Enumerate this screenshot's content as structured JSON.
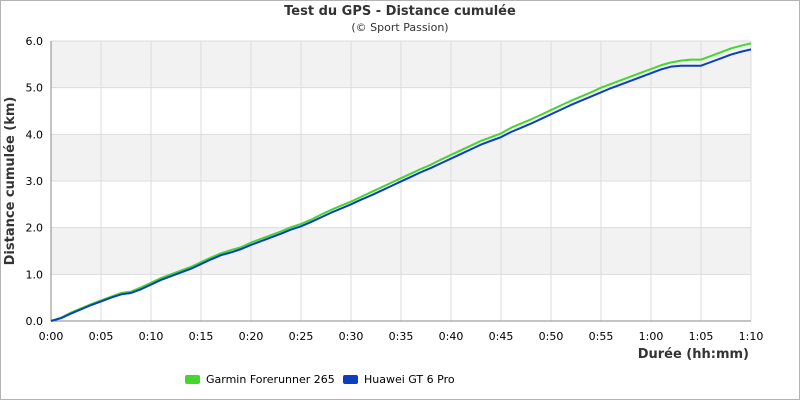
{
  "colors": {
    "garmin": "#44d62c",
    "huawei": "#0a3fbf",
    "band": "#f2f2f2",
    "grid": "#dcdcdc"
  },
  "chart_data": {
    "type": "line",
    "title": "Test du GPS - Distance cumulée",
    "subtitle": "(© Sport Passion)",
    "xlabel": "Durée (hh:mm)",
    "ylabel": "Distance cumulée (km)",
    "x_ticks": [
      "0:00",
      "0:05",
      "0:10",
      "0:15",
      "0:20",
      "0:25",
      "0:30",
      "0:35",
      "0:40",
      "0:45",
      "0:50",
      "0:55",
      "1:00",
      "1:05",
      "1:10"
    ],
    "y_ticks": [
      "0.0",
      "1.0",
      "2.0",
      "3.0",
      "4.0",
      "5.0",
      "6.0"
    ],
    "xlim_minutes": [
      0,
      70
    ],
    "ylim": [
      0,
      6
    ],
    "grid": true,
    "legend_position": "bottom",
    "x_minutes": [
      0,
      1,
      2,
      3,
      4,
      5,
      6,
      7,
      8,
      9,
      10,
      11,
      12,
      13,
      14,
      15,
      16,
      17,
      18,
      19,
      20,
      21,
      22,
      23,
      24,
      25,
      26,
      27,
      28,
      29,
      30,
      31,
      32,
      33,
      34,
      35,
      36,
      37,
      38,
      39,
      40,
      41,
      42,
      43,
      44,
      45,
      46,
      47,
      48,
      49,
      50,
      51,
      52,
      53,
      54,
      55,
      56,
      57,
      58,
      59,
      60,
      61,
      62,
      63,
      64,
      65,
      66,
      67,
      68,
      69,
      70
    ],
    "series": [
      {
        "name": "Garmin Forerunner 265",
        "color": "#44d62c",
        "values": [
          0.0,
          0.07,
          0.18,
          0.27,
          0.36,
          0.44,
          0.52,
          0.6,
          0.63,
          0.72,
          0.82,
          0.92,
          1.0,
          1.08,
          1.16,
          1.26,
          1.36,
          1.45,
          1.52,
          1.58,
          1.68,
          1.76,
          1.84,
          1.92,
          2.01,
          2.08,
          2.17,
          2.28,
          2.38,
          2.47,
          2.56,
          2.66,
          2.76,
          2.86,
          2.96,
          3.06,
          3.16,
          3.26,
          3.35,
          3.46,
          3.56,
          3.66,
          3.76,
          3.86,
          3.94,
          4.02,
          4.14,
          4.23,
          4.32,
          4.42,
          4.52,
          4.62,
          4.72,
          4.81,
          4.9,
          5.0,
          5.08,
          5.16,
          5.24,
          5.32,
          5.4,
          5.48,
          5.54,
          5.58,
          5.6,
          5.6,
          5.68,
          5.76,
          5.84,
          5.9,
          5.95
        ]
      },
      {
        "name": "Huawei GT 6 Pro",
        "color": "#0a3fbf",
        "values": [
          0.0,
          0.06,
          0.16,
          0.25,
          0.34,
          0.42,
          0.5,
          0.57,
          0.6,
          0.68,
          0.78,
          0.88,
          0.96,
          1.04,
          1.12,
          1.22,
          1.32,
          1.41,
          1.47,
          1.54,
          1.63,
          1.71,
          1.79,
          1.87,
          1.96,
          2.03,
          2.12,
          2.22,
          2.32,
          2.41,
          2.5,
          2.6,
          2.69,
          2.79,
          2.89,
          2.99,
          3.09,
          3.19,
          3.28,
          3.38,
          3.48,
          3.58,
          3.68,
          3.78,
          3.86,
          3.94,
          4.05,
          4.14,
          4.23,
          4.33,
          4.43,
          4.53,
          4.63,
          4.72,
          4.81,
          4.9,
          4.99,
          5.07,
          5.15,
          5.23,
          5.31,
          5.39,
          5.45,
          5.47,
          5.47,
          5.47,
          5.55,
          5.63,
          5.71,
          5.77,
          5.82
        ]
      }
    ]
  }
}
